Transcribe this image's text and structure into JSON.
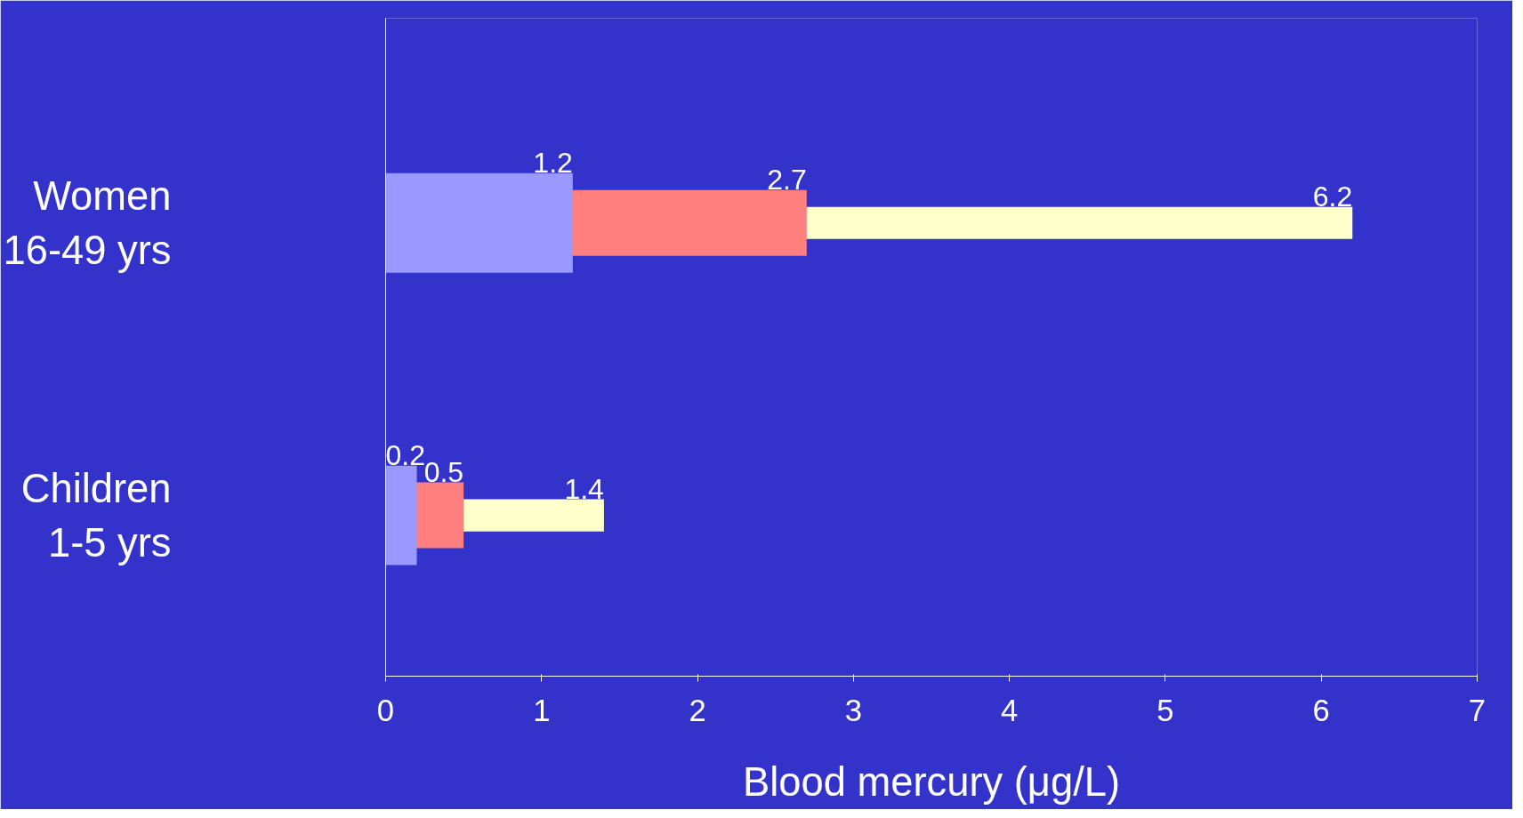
{
  "chart_data": {
    "type": "bar",
    "orientation": "horizontal",
    "xlabel": "Blood mercury (μg/L)",
    "categories": [
      "Women\n16-49 yrs",
      "Children\n1-5 yrs"
    ],
    "series": [
      {
        "color": "#9999ff",
        "values": [
          1.2,
          0.2
        ]
      },
      {
        "color": "#ff7f7f",
        "values": [
          2.7,
          0.5
        ]
      },
      {
        "color": "#ffffcc",
        "values": [
          6.2,
          1.4
        ]
      }
    ],
    "xlim": [
      0,
      7
    ],
    "xticks": [
      0,
      1,
      2,
      3,
      4,
      5,
      6,
      7
    ],
    "grid": false,
    "data_labels": true
  }
}
